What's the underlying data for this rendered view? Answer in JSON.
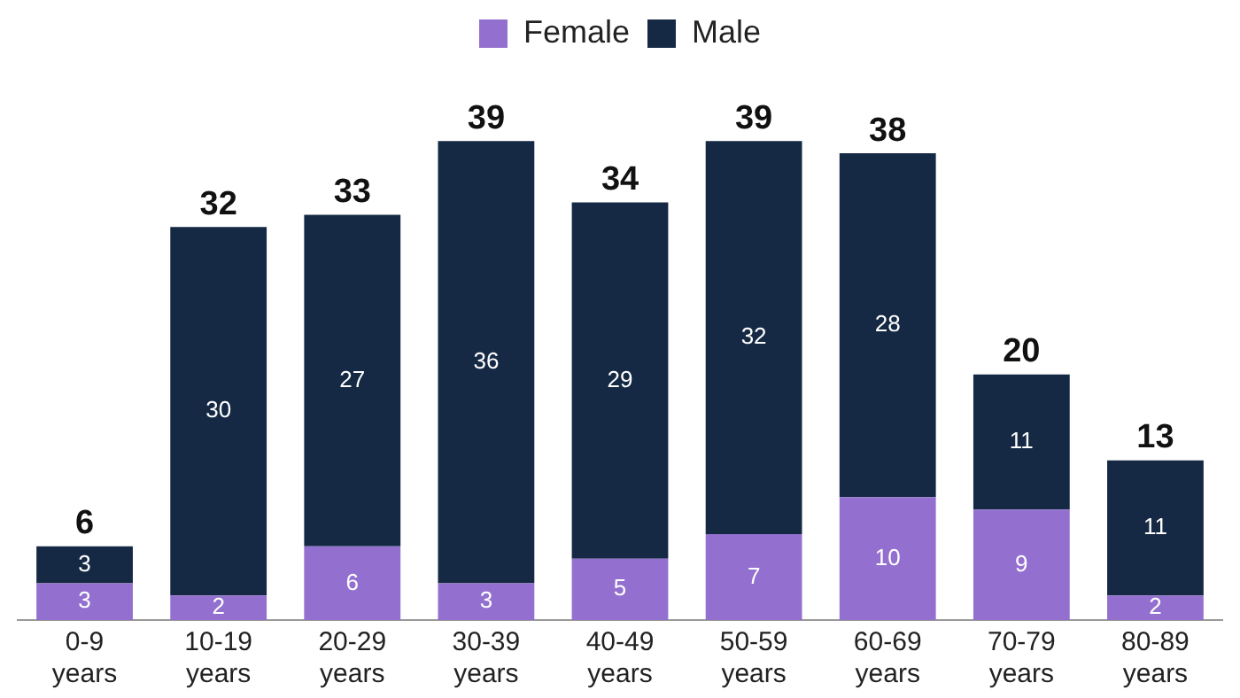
{
  "chart_data": {
    "type": "bar",
    "stacked": true,
    "categories": [
      "0-9 years",
      "10-19 years",
      "20-29 years",
      "30-39 years",
      "40-49 years",
      "50-59 years",
      "60-69 years",
      "70-79 years",
      "80-89 years"
    ],
    "series": [
      {
        "name": "Female",
        "color": "#9370cf",
        "values": [
          3,
          2,
          6,
          3,
          5,
          7,
          10,
          9,
          2
        ]
      },
      {
        "name": "Male",
        "color": "#152944",
        "values": [
          3,
          30,
          27,
          36,
          29,
          32,
          28,
          11,
          11
        ]
      }
    ],
    "data_labels": true,
    "totals": [
      "6",
      "32",
      "33",
      "39",
      "34",
      "39",
      "38",
      "20",
      "13"
    ],
    "legend": "top",
    "grid": false
  }
}
